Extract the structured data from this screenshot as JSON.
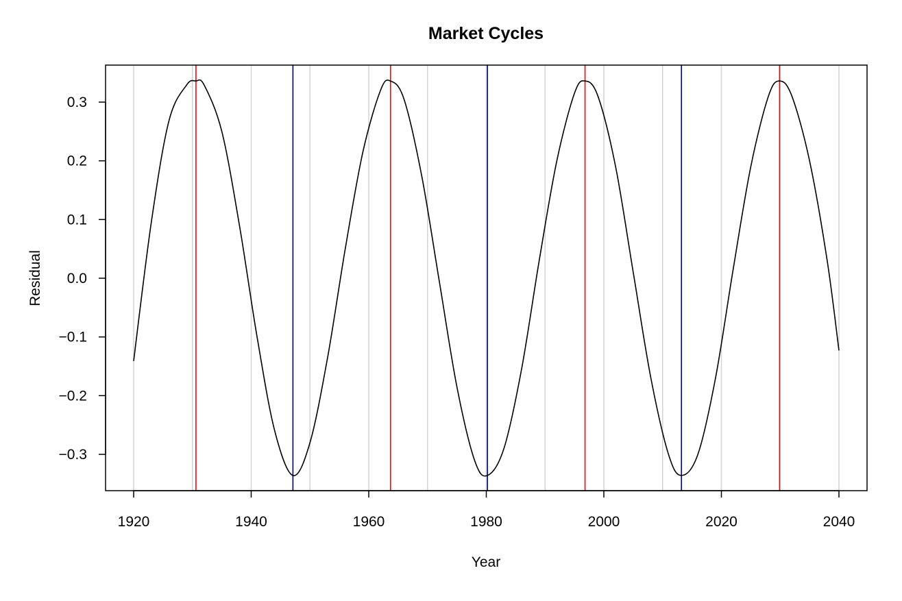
{
  "chart_data": {
    "type": "line",
    "title": "Market Cycles",
    "xlabel": "Year",
    "ylabel": "Residual",
    "xlim": [
      1920,
      2040
    ],
    "ylim": [
      -0.36,
      0.36
    ],
    "x_ticks": [
      1920,
      1940,
      1960,
      1980,
      2000,
      2020,
      2040
    ],
    "x_tick_labels": [
      "1920",
      "1940",
      "1960",
      "1980",
      "2000",
      "2020",
      "2040"
    ],
    "y_ticks": [
      -0.3,
      -0.2,
      -0.1,
      0.0,
      0.1,
      0.2,
      0.3
    ],
    "y_tick_labels": [
      "−0.3",
      "−0.2",
      "−0.1",
      "0.0",
      "0.1",
      "0.2",
      "0.3"
    ],
    "vertical_grid_years": [
      1920,
      1930,
      1940,
      1950,
      1960,
      1970,
      1980,
      1990,
      2000,
      2010,
      2020,
      2030,
      2040
    ],
    "grid_color": "#d3d3d3",
    "series": [
      {
        "color": "#000000",
        "x": [
          1920,
          1923,
          1926,
          1929,
          1930.6,
          1932,
          1935,
          1938,
          1941,
          1944,
          1947.1,
          1950,
          1953,
          1956,
          1959,
          1962,
          1963.7,
          1966,
          1969,
          1972,
          1975,
          1978,
          1980.2,
          1983,
          1986,
          1989,
          1992,
          1995,
          1996.8,
          1999,
          2002,
          2005,
          2008,
          2011,
          2013.2,
          2016,
          2019,
          2022,
          2025,
          2028,
          2029.9,
          2032,
          2035,
          2038,
          2040
        ],
        "y": [
          -0.141,
          0.095,
          0.268,
          0.329,
          0.336,
          0.329,
          0.25,
          0.09,
          -0.1,
          -0.26,
          -0.336,
          -0.28,
          -0.135,
          0.05,
          0.215,
          0.32,
          0.336,
          0.305,
          0.175,
          -0.005,
          -0.185,
          -0.31,
          -0.336,
          -0.29,
          -0.155,
          0.03,
          0.2,
          0.315,
          0.336,
          0.31,
          0.19,
          0.01,
          -0.17,
          -0.3,
          -0.336,
          -0.3,
          -0.17,
          0.015,
          0.19,
          0.31,
          0.336,
          0.31,
          0.2,
          0.03,
          -0.123
        ]
      }
    ],
    "peak_lines": {
      "color": "#ff0000",
      "years": [
        1930.6,
        1963.7,
        1996.8,
        2029.9
      ]
    },
    "trough_lines": {
      "color": "#00008b",
      "years": [
        1947.1,
        1980.2,
        2013.2
      ]
    }
  }
}
